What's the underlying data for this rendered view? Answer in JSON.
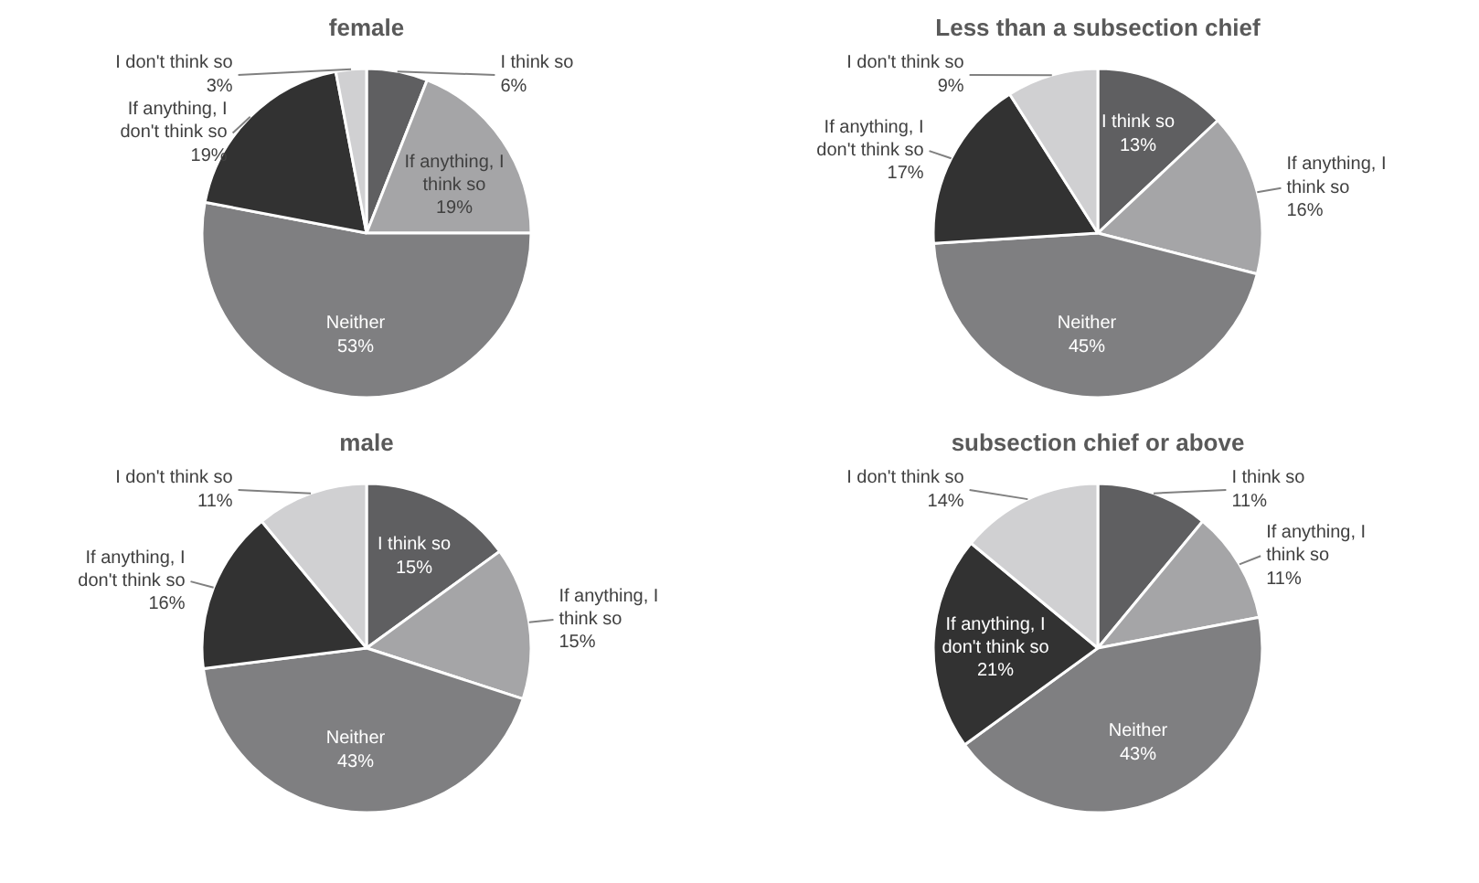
{
  "chart_data": [
    {
      "type": "pie",
      "title": "female",
      "categories": [
        "I think so",
        "If anything, I think so",
        "Neither",
        "If anything, I don't think so",
        "I don't think so"
      ],
      "values": [
        6,
        19,
        53,
        19,
        3
      ],
      "value_labels": [
        "6%",
        "19%",
        "53%",
        "19%",
        "3%"
      ],
      "colors": [
        "#5f5f61",
        "#a5a5a7",
        "#7f7f81",
        "#323232",
        "#d0d0d2"
      ]
    },
    {
      "type": "pie",
      "title": "Less than a subsection chief",
      "categories": [
        "I think so",
        "If anything, I think so",
        "Neither",
        "If anything, I don't think so",
        "I don't think so"
      ],
      "values": [
        13,
        16,
        45,
        17,
        9
      ],
      "value_labels": [
        "13%",
        "16%",
        "45%",
        "17%",
        "9%"
      ],
      "colors": [
        "#5f5f61",
        "#a5a5a7",
        "#7f7f81",
        "#323232",
        "#d0d0d2"
      ]
    },
    {
      "type": "pie",
      "title": "male",
      "categories": [
        "I think so",
        "If anything, I think so",
        "Neither",
        "If anything, I don't think so",
        "I don't think so"
      ],
      "values": [
        15,
        15,
        43,
        16,
        11
      ],
      "value_labels": [
        "15%",
        "15%",
        "43%",
        "16%",
        "11%"
      ],
      "colors": [
        "#5f5f61",
        "#a5a5a7",
        "#7f7f81",
        "#323232",
        "#d0d0d2"
      ]
    },
    {
      "type": "pie",
      "title": "subsection chief or above",
      "categories": [
        "I think so",
        "If anything, I think so",
        "Neither",
        "If anything, I don't think so",
        "I don't think so"
      ],
      "values": [
        11,
        11,
        43,
        21,
        14
      ],
      "value_labels": [
        "11%",
        "11%",
        "43%",
        "21%",
        "14%"
      ],
      "colors": [
        "#5f5f61",
        "#a5a5a7",
        "#7f7f81",
        "#323232",
        "#d0d0d2"
      ]
    }
  ]
}
